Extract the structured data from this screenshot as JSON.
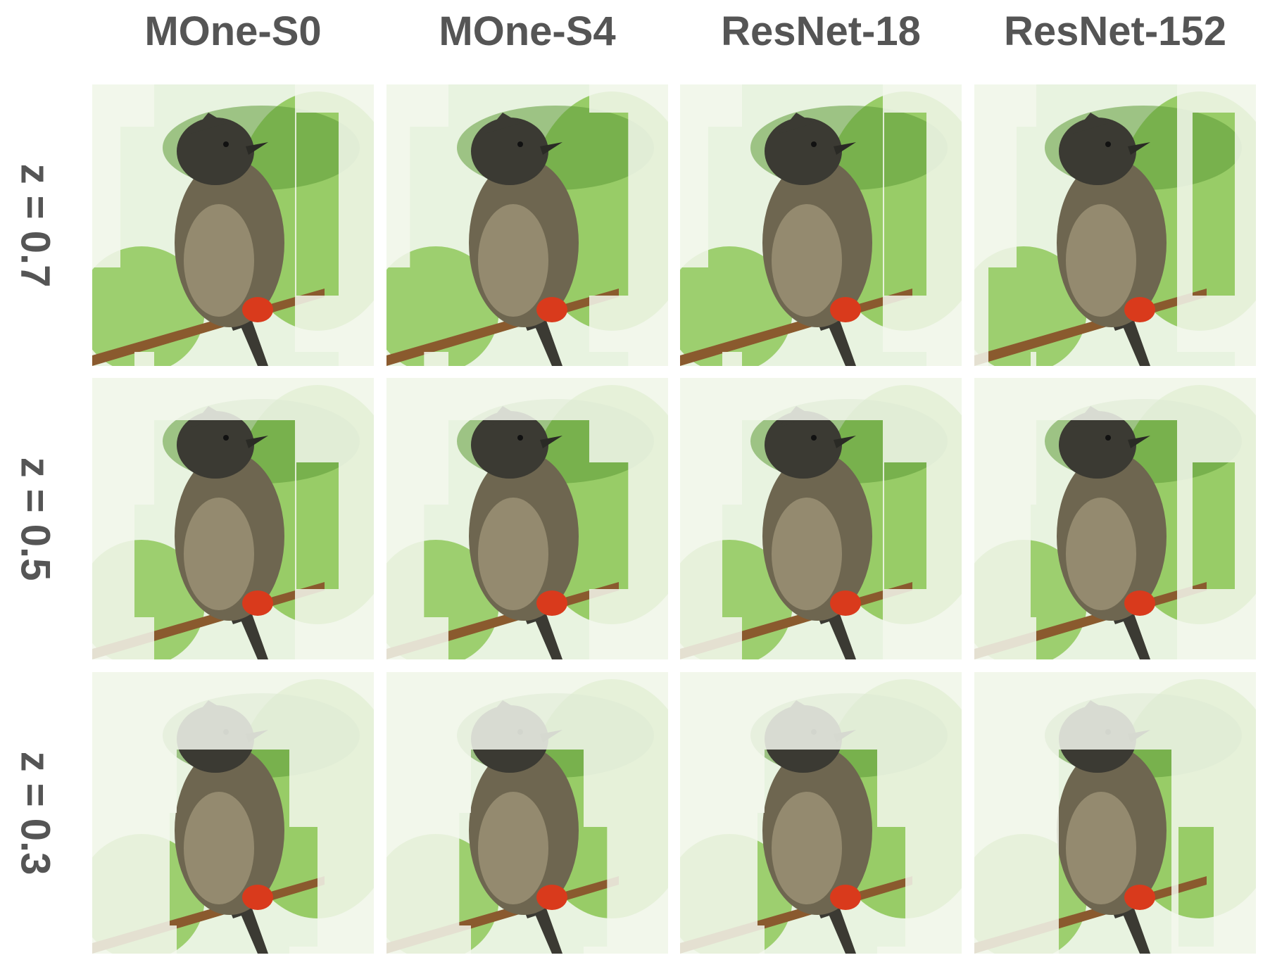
{
  "columns": [
    {
      "label": "MOne-S0"
    },
    {
      "label": "MOne-S4"
    },
    {
      "label": "ResNet-18"
    },
    {
      "label": "ResNet-152"
    }
  ],
  "rows": [
    {
      "label": "z = 0.7",
      "z": 0.7
    },
    {
      "label": "z = 0.5",
      "z": 0.5
    },
    {
      "label": "z = 0.3",
      "z": 0.3
    }
  ],
  "colors": {
    "label_text": "#555555",
    "foliage": "#8fc85a",
    "foliage_dark": "#5f9a38",
    "sky": "#e8f3e0",
    "faded_overlay": "#f4f8ee",
    "bird_body": "#6e6650",
    "bird_head": "#3b3a33",
    "bird_belly": "#a49a7c",
    "vent_red": "#d93a1c",
    "branch": "#8a5a2e"
  },
  "icons": [
    "bird-image",
    "saliency-mask"
  ]
}
